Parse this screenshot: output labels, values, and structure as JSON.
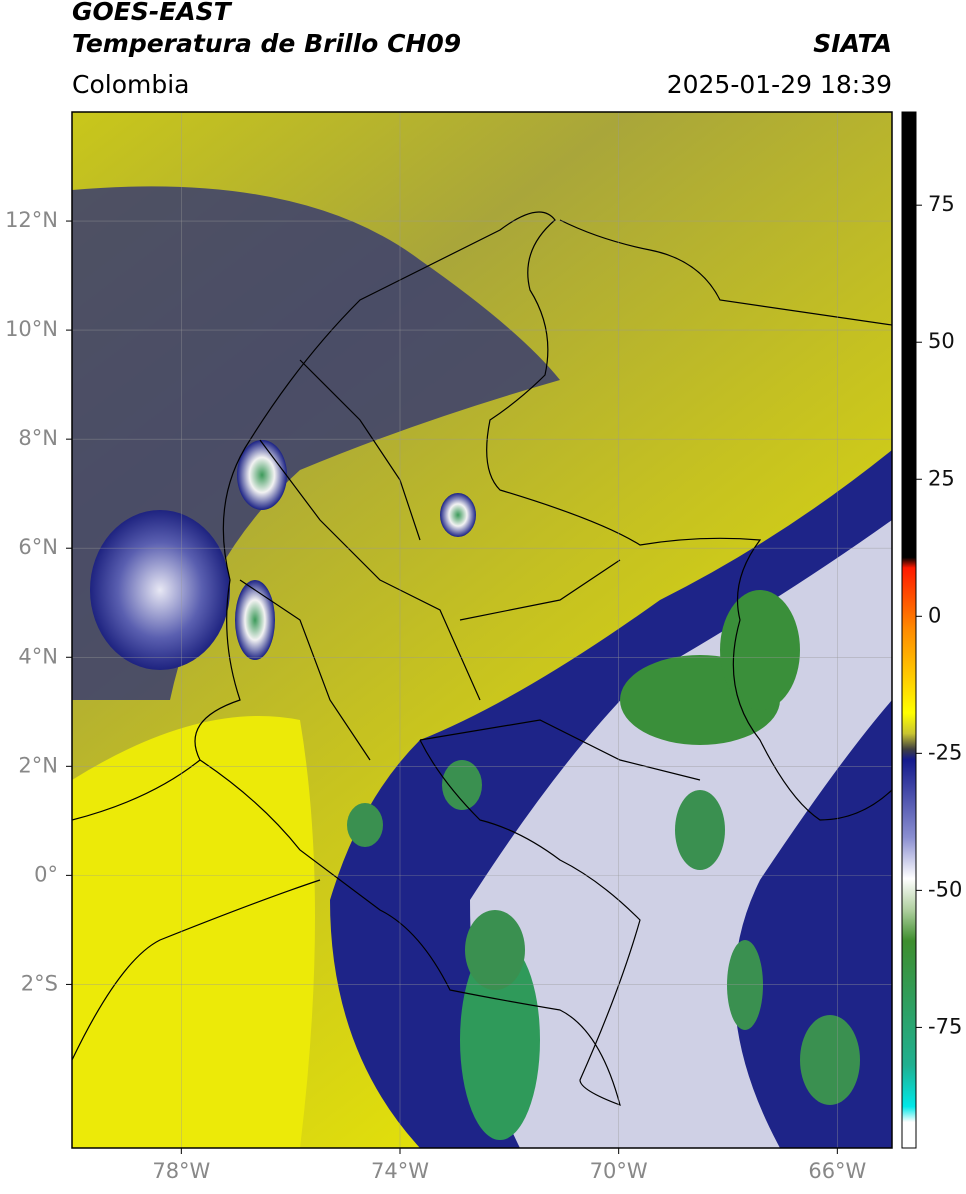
{
  "header": {
    "title_line1": "GOES-EAST",
    "title_line2": "Temperatura de Brillo CH09",
    "region": "Colombia",
    "source": "SIATA",
    "datetime": "2025-01-29 18:39"
  },
  "map": {
    "xlim": [
      -80,
      -65
    ],
    "ylim": [
      -5,
      14
    ],
    "xticks": [
      {
        "value": -78,
        "label": "78°W"
      },
      {
        "value": -74,
        "label": "74°W"
      },
      {
        "value": -70,
        "label": "70°W"
      },
      {
        "value": -66,
        "label": "66°W"
      }
    ],
    "yticks": [
      {
        "value": 12,
        "label": "12°N"
      },
      {
        "value": 10,
        "label": "10°N"
      },
      {
        "value": 8,
        "label": "8°N"
      },
      {
        "value": 6,
        "label": "6°N"
      },
      {
        "value": 4,
        "label": "4°N"
      },
      {
        "value": 2,
        "label": "2°N"
      },
      {
        "value": 0,
        "label": "0°"
      },
      {
        "value": -2,
        "label": "2°S"
      }
    ],
    "grid": true
  },
  "colorbar": {
    "lim": [
      -97,
      92
    ],
    "ticks": [
      75,
      50,
      25,
      0,
      -25,
      -50,
      -75
    ]
  }
}
